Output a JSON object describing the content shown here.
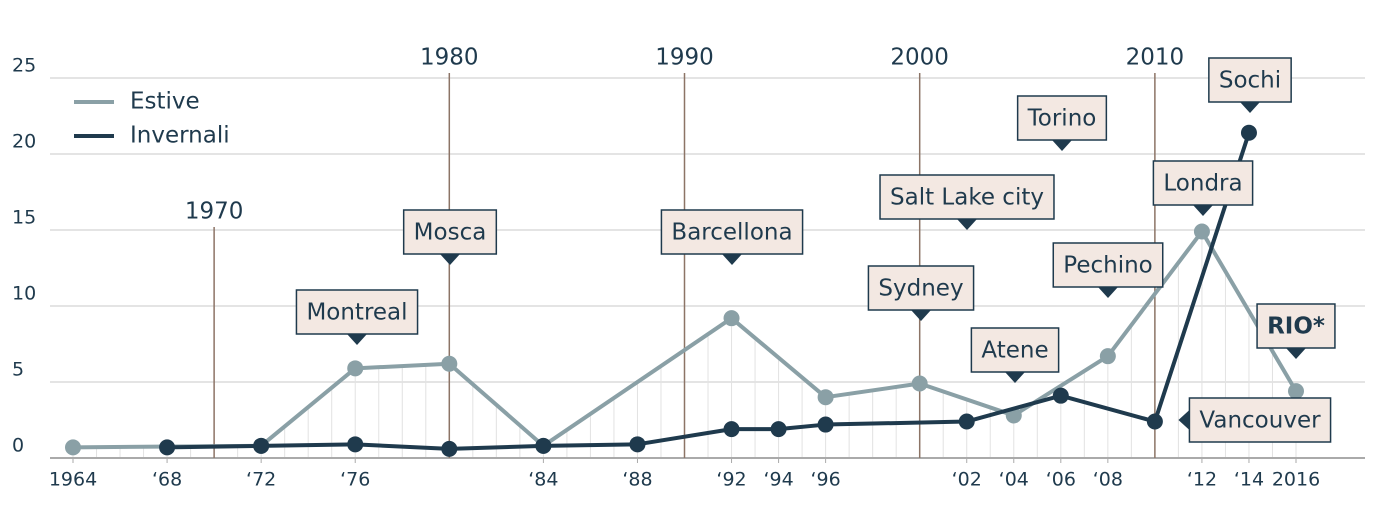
{
  "chart_data": {
    "type": "line",
    "xlim": [
      1964,
      2016
    ],
    "ylim": [
      0,
      25
    ],
    "yticks": [
      0,
      5,
      10,
      15,
      20,
      25
    ],
    "xticks": [
      1964,
      {
        "value": 1968,
        "label": "‘68"
      },
      {
        "value": 1972,
        "label": "‘72"
      },
      {
        "value": 1976,
        "label": "‘76"
      },
      {
        "value": 1984,
        "label": "‘84"
      },
      {
        "value": 1988,
        "label": "‘88"
      },
      {
        "value": 1992,
        "label": "‘92"
      },
      {
        "value": 1994,
        "label": "‘94"
      },
      {
        "value": 1996,
        "label": "‘96"
      },
      {
        "value": 2002,
        "label": "‘02"
      },
      {
        "value": 2004,
        "label": "‘04"
      },
      {
        "value": 2006,
        "label": "‘06"
      },
      {
        "value": 2008,
        "label": "‘08"
      },
      {
        "value": 2012,
        "label": "‘12"
      },
      {
        "value": 2014,
        "label": "‘14"
      },
      2016
    ],
    "decades": [
      1970,
      1980,
      1990,
      2000,
      2010
    ],
    "grid": true,
    "series": [
      {
        "name": "Estive",
        "color": "#8aa0a6",
        "x": [
          1964,
          1972,
          1976,
          1980,
          1984,
          1992,
          1996,
          2000,
          2004,
          2008,
          2012,
          2016
        ],
        "values": [
          0.7,
          0.8,
          5.9,
          6.2,
          0.8,
          9.2,
          4.0,
          4.9,
          2.8,
          6.7,
          14.9,
          4.4
        ]
      },
      {
        "name": "Invernali",
        "color": "#1f3a4d",
        "x": [
          1968,
          1972,
          1976,
          1980,
          1984,
          1988,
          1992,
          1994,
          1996,
          2002,
          2006,
          2010,
          2014
        ],
        "values": [
          0.7,
          0.8,
          0.9,
          0.6,
          0.8,
          0.9,
          1.9,
          1.9,
          2.2,
          2.4,
          4.1,
          2.4,
          21.4
        ]
      }
    ],
    "annotations": [
      "Montreal",
      "Mosca",
      "Barcellona",
      "Sydney",
      "Salt Lake city",
      "Torino",
      "Atene",
      "Pechino",
      "Londra",
      "Sochi",
      "RIO*",
      "Vancouver"
    ]
  }
}
